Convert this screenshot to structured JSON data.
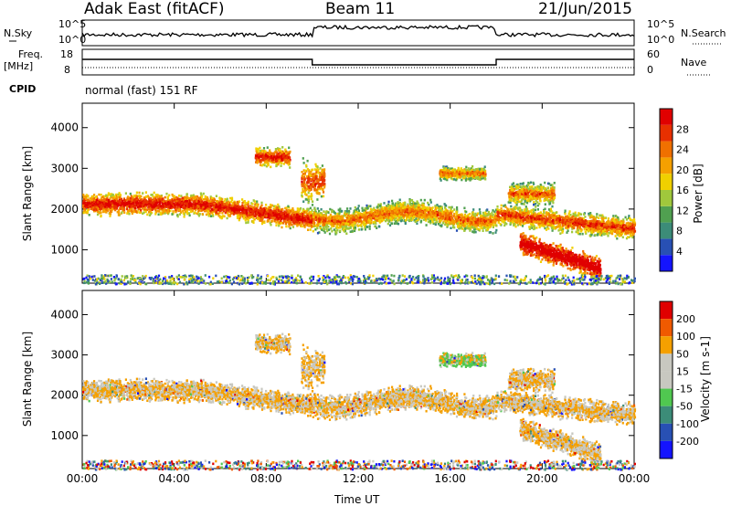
{
  "header": {
    "station": "Adak East (fitACF)",
    "beam": "Beam 11",
    "date": "21/Jun/2015"
  },
  "top_panels": {
    "nsky_label": "N.Sky",
    "nsky_tick_top": "10^5",
    "nsky_tick_bottom": "10^0",
    "nsearch_label": "N.Search",
    "nsearch_tick_top": "10^5",
    "nsearch_tick_bottom": "10^0",
    "freq_label": "Freq.",
    "freq_unit": "[MHz]",
    "freq_tick_top": "18",
    "freq_tick_bottom": "8",
    "nave_label": "Nave",
    "nave_tick_top": "60",
    "nave_tick_bottom": "0",
    "cpid_label": "CPID",
    "cpid_text": "normal (fast) 151 RF"
  },
  "colors": {
    "power_scale": [
      "#1414ff",
      "#2850b4",
      "#3c8c78",
      "#50a050",
      "#a0c83c",
      "#f0d000",
      "#f5a000",
      "#f07000",
      "#e83000",
      "#e00000"
    ],
    "velocity_scale": [
      "#e00000",
      "#f05a00",
      "#f5a000",
      "#c8c8c0",
      "#c8c8c0",
      "#50c850",
      "#3c8c78",
      "#2850b4",
      "#1414ff"
    ]
  },
  "chart_data": [
    {
      "type": "heatmap",
      "title": "Power",
      "ylabel": "Slant Range [km]",
      "ylim": [
        180,
        4600
      ],
      "yticks": [
        "1000",
        "2000",
        "3000",
        "4000"
      ],
      "xticks": [
        "00:00",
        "04:00",
        "08:00",
        "12:00",
        "16:00",
        "20:00",
        "00:00"
      ],
      "colorbar_label": "Power [dB]",
      "colorbar_ticks": [
        "4",
        "8",
        "12",
        "16",
        "20",
        "24",
        "28"
      ],
      "colorbar_range": [
        0,
        32
      ]
    },
    {
      "type": "heatmap",
      "title": "Velocity",
      "ylabel": "Slant Range [km]",
      "ylim": [
        180,
        4600
      ],
      "yticks": [
        "1000",
        "2000",
        "3000",
        "4000"
      ],
      "xticks": [
        "00:00",
        "04:00",
        "08:00",
        "12:00",
        "16:00",
        "20:00",
        "00:00"
      ],
      "xlabel": "Time UT",
      "colorbar_label": "Velocity [m s-1]",
      "colorbar_ticks": [
        "200",
        "100",
        "50",
        "15",
        "-15",
        "-50",
        "-100",
        "-200"
      ]
    }
  ]
}
